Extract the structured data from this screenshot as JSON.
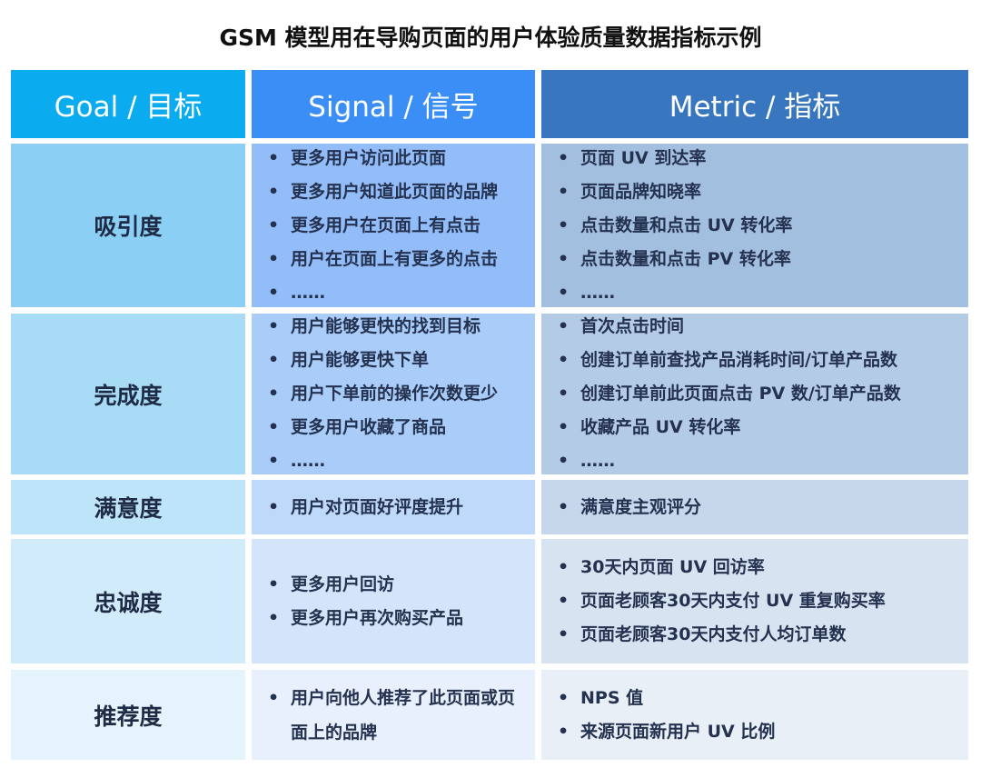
{
  "title": "GSM 模型用在导购页面的用户体验质量数据指标示例",
  "headers": {
    "goal": "Goal / 目标",
    "signal": "Signal / 信号",
    "metric": "Metric / 指标"
  },
  "colors": {
    "header": [
      "#0aacef",
      "#3b8ef5",
      "#3876bf"
    ],
    "goal_rows": [
      "#8bcff4",
      "#a7dbf6",
      "#bde4f8",
      "#d2ebfa",
      "#e5f3fc"
    ],
    "signal_rows": [
      "#93bdf8",
      "#a9ccf9",
      "#bfd9fa",
      "#d4e5fb",
      "#e7f0fc"
    ],
    "metric_rows": [
      "#a3bfe0",
      "#b4cbe6",
      "#c6d7ec",
      "#d7e3f1",
      "#e8eff7"
    ],
    "text": "#1f2b45"
  },
  "rows": [
    {
      "goal": "吸引度",
      "signals": [
        "更多用户访问此页面",
        "更多用户知道此页面的品牌",
        "更多用户在页面上有点击",
        "用户在页面上有更多的点击",
        "……"
      ],
      "metrics": [
        "页面 UV 到达率",
        "页面品牌知晓率",
        "点击数量和点击 UV 转化率",
        "点击数量和点击 PV 转化率",
        "……"
      ]
    },
    {
      "goal": "完成度",
      "signals": [
        "用户能够更快的找到目标",
        "用户能够更快下单",
        "用户下单前的操作次数更少",
        "更多用户收藏了商品",
        "……"
      ],
      "metrics": [
        "首次点击时间",
        "创建订单前查找产品消耗时间/订单产品数",
        "创建订单前此页面点击 PV 数/订单产品数",
        "收藏产品 UV 转化率",
        "……"
      ]
    },
    {
      "goal": "满意度",
      "signals": [
        "用户对页面好评度提升"
      ],
      "metrics": [
        "满意度主观评分"
      ]
    },
    {
      "goal": "忠诚度",
      "signals": [
        "更多用户回访",
        "更多用户再次购买产品"
      ],
      "metrics": [
        "30天内页面 UV 回访率",
        "页面老顾客30天内支付 UV 重复购买率",
        "页面老顾客30天内支付人均订单数"
      ]
    },
    {
      "goal": "推荐度",
      "signals": [
        "用户向他人推荐了此页面或页面上的品牌"
      ],
      "metrics": [
        "NPS 值",
        "来源页面新用户 UV 比例"
      ]
    }
  ]
}
